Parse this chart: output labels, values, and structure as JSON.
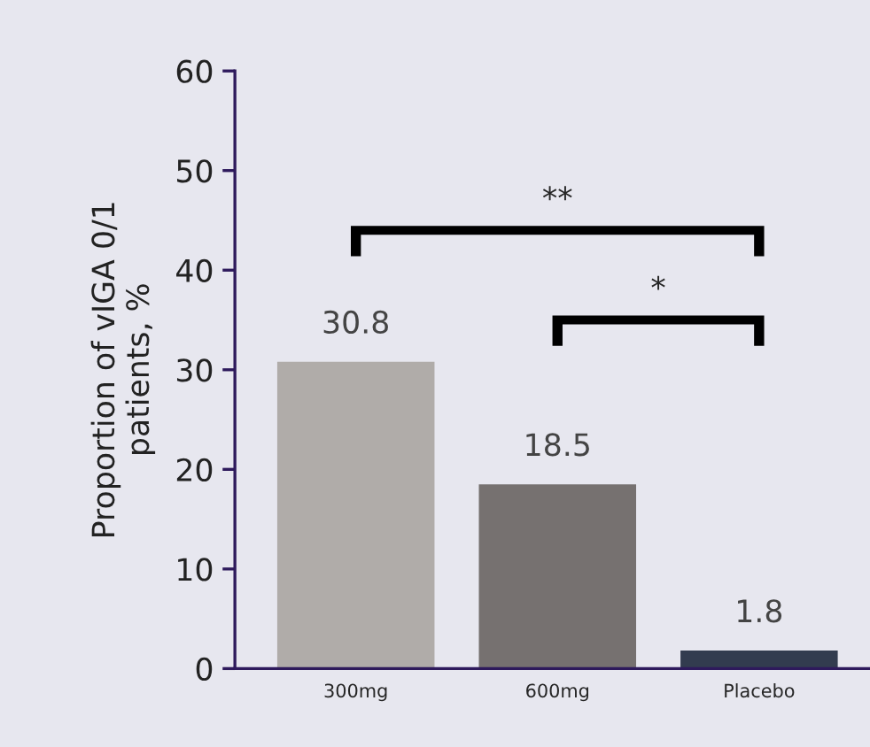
{
  "chart_data": {
    "type": "bar",
    "ylabel": "Proportion of vIGA 0/1\npatients, %",
    "categories": [
      "300mg",
      "600mg",
      "Placebo"
    ],
    "values": [
      30.8,
      18.5,
      1.8
    ],
    "colors": [
      "#b0aca9",
      "#767170",
      "#323c4f"
    ],
    "value_labels": [
      "30.8",
      "18.5",
      "1.8"
    ],
    "ylim": [
      0,
      60
    ],
    "yticks": [
      0,
      10,
      20,
      30,
      40,
      50,
      60
    ],
    "annotations": [
      "**",
      "*"
    ],
    "grid": false,
    "legend": false
  }
}
